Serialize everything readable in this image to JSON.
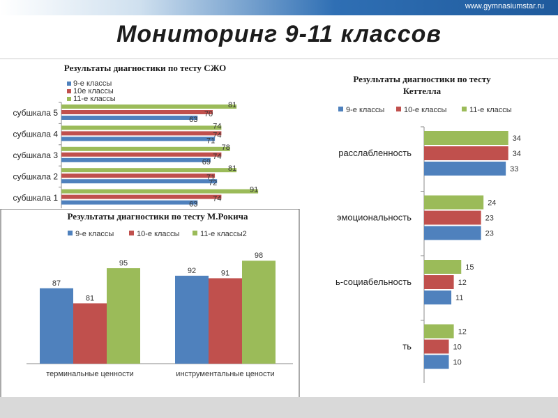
{
  "header": {
    "site": "www.gymnasiumstar.ru",
    "title": "Мониторинг 9-11 классов"
  },
  "colors": {
    "series": [
      "#4f81bd",
      "#c0504d",
      "#9bbb59"
    ]
  },
  "chart_data": [
    {
      "type": "bar",
      "orientation": "horizontal",
      "title": "Результаты диагностики по тесту СЖО",
      "categories": [
        "субшкала 5",
        "субшкала 4",
        "субшкала 3",
        "субшкала 2",
        "субшкала 1"
      ],
      "series": [
        {
          "name": "9-е классы",
          "values": [
            63,
            71,
            69,
            72,
            63
          ]
        },
        {
          "name": "10е классы",
          "values": [
            70,
            74,
            74,
            71,
            74
          ]
        },
        {
          "name": "11-е классы",
          "values": [
            81,
            74,
            78,
            81,
            91
          ]
        }
      ],
      "legend": "top-left"
    },
    {
      "type": "bar",
      "orientation": "horizontal",
      "title": "Результаты диагностики по тесту Кеттелла",
      "categories": [
        "расслабленность",
        "эмоциональность",
        "ь-социабельность",
        "ть"
      ],
      "series": [
        {
          "name": "9-е классы",
          "values": [
            33,
            23,
            11,
            10
          ]
        },
        {
          "name": "10-е классы",
          "values": [
            34,
            23,
            12,
            10
          ]
        },
        {
          "name": "11-е классы",
          "values": [
            34,
            24,
            15,
            12
          ]
        }
      ],
      "legend": "top"
    },
    {
      "type": "bar",
      "orientation": "vertical",
      "title": "Результаты диагностики по тесту М.Рокича",
      "categories": [
        "терминальные ценности",
        "инструментальные цености"
      ],
      "series": [
        {
          "name": "9-е классы",
          "values": [
            87,
            92
          ]
        },
        {
          "name": "10-е классы",
          "values": [
            81,
            91
          ]
        },
        {
          "name": "11-е классы2",
          "values": [
            95,
            98
          ]
        }
      ],
      "legend": "top"
    }
  ]
}
